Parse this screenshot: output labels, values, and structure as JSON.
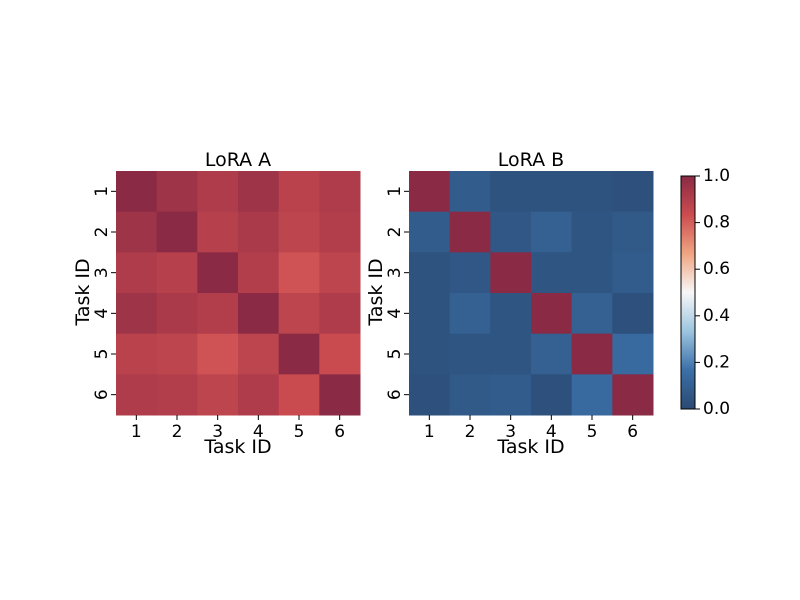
{
  "chart_data": [
    {
      "type": "heatmap",
      "title": "LoRA A",
      "xlabel": "Task ID",
      "ylabel": "Task ID",
      "x_categories": [
        "1",
        "2",
        "3",
        "4",
        "5",
        "6"
      ],
      "y_categories": [
        "1",
        "2",
        "3",
        "4",
        "5",
        "6"
      ],
      "values": [
        [
          1.0,
          0.95,
          0.91,
          0.95,
          0.88,
          0.91
        ],
        [
          0.95,
          1.0,
          0.89,
          0.92,
          0.87,
          0.9
        ],
        [
          0.91,
          0.89,
          1.0,
          0.9,
          0.82,
          0.87
        ],
        [
          0.95,
          0.92,
          0.9,
          1.0,
          0.87,
          0.91
        ],
        [
          0.88,
          0.87,
          0.82,
          0.87,
          1.0,
          0.84
        ],
        [
          0.91,
          0.9,
          0.87,
          0.91,
          0.84,
          1.0
        ]
      ]
    },
    {
      "type": "heatmap",
      "title": "LoRA B",
      "xlabel": "Task ID",
      "ylabel": "Task ID",
      "x_categories": [
        "1",
        "2",
        "3",
        "4",
        "5",
        "6"
      ],
      "y_categories": [
        "1",
        "2",
        "3",
        "4",
        "5",
        "6"
      ],
      "values": [
        [
          1.0,
          0.08,
          0.04,
          0.04,
          0.04,
          0.03
        ],
        [
          0.08,
          1.0,
          0.06,
          0.1,
          0.05,
          0.07
        ],
        [
          0.04,
          0.06,
          1.0,
          0.05,
          0.05,
          0.08
        ],
        [
          0.04,
          0.1,
          0.05,
          1.0,
          0.1,
          0.03
        ],
        [
          0.04,
          0.05,
          0.05,
          0.1,
          1.0,
          0.14
        ],
        [
          0.03,
          0.07,
          0.08,
          0.03,
          0.14,
          1.0
        ]
      ]
    }
  ],
  "colorbar": {
    "colormap": "RdBu_r",
    "range": [
      0.0,
      1.0
    ],
    "ticks": [
      "0.0",
      "0.2",
      "0.4",
      "0.6",
      "0.8",
      "1.0"
    ],
    "colors": [
      "#2a4a72",
      "#3b6fa8",
      "#9cc4df",
      "#f7f7f7",
      "#f0a582",
      "#cc4c50",
      "#8a2a45"
    ]
  }
}
